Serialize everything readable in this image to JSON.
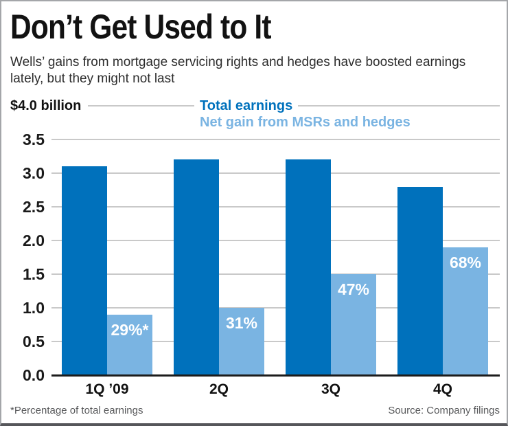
{
  "header": {
    "title": "Don’t Get Used to It",
    "subtitle": "Wells’ gains from mortgage servicing rights and hedges have boosted earnings lately, but they might not last"
  },
  "footer": {
    "footnote": "*Percentage of total earnings",
    "source": "Source: Company filings"
  },
  "chart_data": {
    "type": "bar",
    "title": "Don’t Get Used to It",
    "y_top_label": "$4.0 billion",
    "categories": [
      "1Q ’09",
      "2Q",
      "3Q",
      "4Q"
    ],
    "series": [
      {
        "name": "Total earnings",
        "color": "#0071bc",
        "values": [
          3.1,
          3.2,
          3.2,
          2.8
        ]
      },
      {
        "name": "Net gain from MSRs and hedges",
        "color": "#7ab4e2",
        "values": [
          0.9,
          1.0,
          1.5,
          1.9
        ],
        "bar_labels": [
          "29%*",
          "31%",
          "47%",
          "68%"
        ]
      }
    ],
    "ylim": [
      0,
      4.0
    ],
    "ytick_labels": [
      "0.0",
      "0.5",
      "1.0",
      "1.5",
      "2.0",
      "2.5",
      "3.0",
      "3.5"
    ],
    "grid": "horizontal",
    "legend_position": "top"
  }
}
